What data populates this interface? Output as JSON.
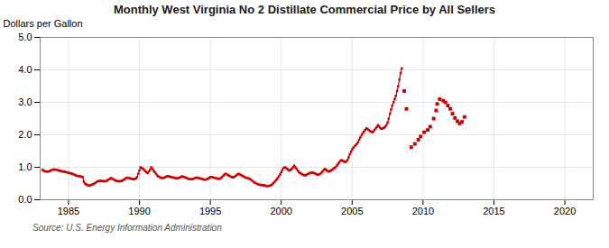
{
  "chart_data": {
    "type": "line",
    "title": "Monthly West Virginia No 2 Distillate Commercial Price by All Sellers",
    "ylabel": "Dollars per Gallon",
    "caption": "Source: U.S. Energy Information Administration",
    "xlim": [
      1983.0,
      2022.0
    ],
    "xticks": [
      1985,
      1990,
      1995,
      2000,
      2005,
      2010,
      2015,
      2020
    ],
    "ylim": [
      0.0,
      5.0
    ],
    "yticks": [
      {
        "value": 0.0,
        "label": "0.0"
      },
      {
        "value": 1.0,
        "label": "1.0"
      },
      {
        "value": 2.0,
        "label": "2.0"
      },
      {
        "value": 3.0,
        "label": "3.0"
      },
      {
        "value": 4.0,
        "label": "4.0"
      },
      {
        "value": 5.0,
        "label": "5.0"
      }
    ],
    "grid": true,
    "series": [
      {
        "type": "line",
        "marker": "square",
        "color": "#cc0000",
        "x": [
          1983.17,
          1983.25,
          1983.33,
          1983.42,
          1983.5,
          1983.58,
          1983.67,
          1983.75,
          1983.83,
          1983.92,
          1984.0,
          1984.08,
          1984.17,
          1984.25,
          1984.33,
          1984.42,
          1984.5,
          1984.58,
          1984.67,
          1984.75,
          1984.83,
          1984.92,
          1985.0,
          1985.08,
          1985.17,
          1985.25,
          1985.33,
          1985.42,
          1985.5,
          1985.58,
          1985.67,
          1985.75,
          1985.83,
          1985.92,
          1986.0,
          1986.08,
          1986.17,
          1986.25,
          1986.33,
          1986.42,
          1986.5,
          1986.58,
          1986.67,
          1986.75,
          1986.83,
          1986.92,
          1987.0,
          1987.08,
          1987.17,
          1987.25,
          1987.33,
          1987.42,
          1987.5,
          1987.58,
          1987.67,
          1987.75,
          1987.83,
          1987.92,
          1988.0,
          1988.08,
          1988.17,
          1988.25,
          1988.33,
          1988.42,
          1988.5,
          1988.58,
          1988.67,
          1988.75,
          1988.83,
          1988.92,
          1989.0,
          1989.08,
          1989.17,
          1989.25,
          1989.33,
          1989.42,
          1989.5,
          1989.58,
          1989.67,
          1989.75,
          1989.83,
          1989.92,
          1990.0,
          1990.08,
          1990.17,
          1990.25,
          1990.33,
          1990.42,
          1990.5,
          1990.58,
          1990.67,
          1990.75,
          1990.83,
          1990.92,
          1991.0,
          1991.08,
          1991.17,
          1991.25,
          1991.33,
          1991.42,
          1991.5,
          1991.58,
          1991.67,
          1991.75,
          1991.83,
          1991.92,
          1992.0,
          1992.08,
          1992.17,
          1992.25,
          1992.33,
          1992.42,
          1992.5,
          1992.58,
          1992.67,
          1992.75,
          1992.83,
          1992.92,
          1993.0,
          1993.08,
          1993.17,
          1993.25,
          1993.33,
          1993.42,
          1993.5,
          1993.58,
          1993.67,
          1993.75,
          1993.83,
          1993.92,
          1994.0,
          1994.08,
          1994.17,
          1994.25,
          1994.33,
          1994.42,
          1994.5,
          1994.58,
          1994.67,
          1994.75,
          1994.83,
          1994.92,
          1995.0,
          1995.08,
          1995.17,
          1995.25,
          1995.33,
          1995.42,
          1995.5,
          1995.58,
          1995.67,
          1995.75,
          1995.83,
          1995.92,
          1996.0,
          1996.08,
          1996.17,
          1996.25,
          1996.33,
          1996.42,
          1996.5,
          1996.58,
          1996.67,
          1996.75,
          1996.83,
          1996.92,
          1997.0,
          1997.08,
          1997.17,
          1997.25,
          1997.33,
          1997.42,
          1997.5,
          1997.58,
          1997.67,
          1997.75,
          1997.83,
          1997.92,
          1998.0,
          1998.08,
          1998.17,
          1998.25,
          1998.33,
          1998.42,
          1998.5,
          1998.58,
          1998.67,
          1998.75,
          1998.83,
          1998.92,
          1999.0,
          1999.08,
          1999.17,
          1999.25,
          1999.33,
          1999.42,
          1999.5,
          1999.58,
          1999.67,
          1999.75,
          1999.83,
          1999.92,
          2000.0,
          2000.08,
          2000.17,
          2000.25,
          2000.33,
          2000.42,
          2000.5,
          2000.58,
          2000.67,
          2000.75,
          2000.83,
          2000.92,
          2001.0,
          2001.08,
          2001.17,
          2001.25,
          2001.33,
          2001.42,
          2001.5,
          2001.58,
          2001.67,
          2001.75,
          2001.83,
          2001.92,
          2002.0,
          2002.08,
          2002.17,
          2002.25,
          2002.33,
          2002.42,
          2002.5,
          2002.58,
          2002.67,
          2002.75,
          2002.83,
          2002.92,
          2003.0,
          2003.08,
          2003.17,
          2003.25,
          2003.33,
          2003.42,
          2003.5,
          2003.58,
          2003.67,
          2003.75,
          2003.83,
          2003.92,
          2004.0,
          2004.08,
          2004.17,
          2004.25,
          2004.33,
          2004.42,
          2004.5,
          2004.58,
          2004.67,
          2004.75,
          2004.83,
          2004.92,
          2005.0,
          2005.08,
          2005.17,
          2005.25,
          2005.33,
          2005.42,
          2005.5,
          2005.58,
          2005.67,
          2005.75,
          2005.83,
          2005.92,
          2006.0,
          2006.08,
          2006.17,
          2006.25,
          2006.33,
          2006.42,
          2006.5,
          2006.58,
          2006.67,
          2006.75,
          2006.83,
          2006.92,
          2007.0,
          2007.08,
          2007.17,
          2007.25,
          2007.33,
          2007.42,
          2007.5,
          2007.58,
          2007.67,
          2007.75,
          2007.83,
          2007.92,
          2008.0,
          2008.08,
          2008.17,
          2008.25,
          2008.33,
          2008.42,
          2008.5
        ],
        "values": [
          0.92,
          0.9,
          0.88,
          0.87,
          0.87,
          0.87,
          0.88,
          0.9,
          0.92,
          0.93,
          0.93,
          0.93,
          0.92,
          0.91,
          0.9,
          0.89,
          0.88,
          0.87,
          0.87,
          0.86,
          0.85,
          0.84,
          0.83,
          0.82,
          0.81,
          0.8,
          0.79,
          0.77,
          0.75,
          0.74,
          0.73,
          0.73,
          0.72,
          0.71,
          0.7,
          0.55,
          0.5,
          0.47,
          0.45,
          0.44,
          0.44,
          0.45,
          0.47,
          0.48,
          0.5,
          0.53,
          0.55,
          0.57,
          0.58,
          0.58,
          0.58,
          0.57,
          0.57,
          0.57,
          0.58,
          0.6,
          0.62,
          0.65,
          0.67,
          0.65,
          0.63,
          0.61,
          0.59,
          0.58,
          0.57,
          0.57,
          0.57,
          0.58,
          0.6,
          0.62,
          0.65,
          0.67,
          0.68,
          0.67,
          0.66,
          0.65,
          0.64,
          0.63,
          0.64,
          0.65,
          0.7,
          0.8,
          0.9,
          1.0,
          0.98,
          0.95,
          0.92,
          0.88,
          0.85,
          0.82,
          0.87,
          0.92,
          1.0,
          0.95,
          0.9,
          0.85,
          0.8,
          0.75,
          0.72,
          0.7,
          0.68,
          0.67,
          0.67,
          0.68,
          0.7,
          0.72,
          0.73,
          0.72,
          0.71,
          0.7,
          0.69,
          0.68,
          0.67,
          0.66,
          0.66,
          0.67,
          0.68,
          0.7,
          0.72,
          0.71,
          0.7,
          0.68,
          0.67,
          0.65,
          0.64,
          0.63,
          0.63,
          0.64,
          0.65,
          0.67,
          0.68,
          0.68,
          0.67,
          0.66,
          0.65,
          0.64,
          0.63,
          0.62,
          0.62,
          0.63,
          0.65,
          0.67,
          0.7,
          0.7,
          0.69,
          0.68,
          0.67,
          0.66,
          0.65,
          0.64,
          0.65,
          0.67,
          0.7,
          0.74,
          0.78,
          0.8,
          0.78,
          0.76,
          0.74,
          0.72,
          0.7,
          0.69,
          0.7,
          0.72,
          0.75,
          0.78,
          0.8,
          0.78,
          0.76,
          0.74,
          0.72,
          0.7,
          0.68,
          0.67,
          0.66,
          0.65,
          0.63,
          0.6,
          0.57,
          0.54,
          0.52,
          0.5,
          0.48,
          0.47,
          0.46,
          0.45,
          0.45,
          0.45,
          0.44,
          0.43,
          0.42,
          0.42,
          0.43,
          0.44,
          0.46,
          0.5,
          0.54,
          0.58,
          0.62,
          0.67,
          0.72,
          0.78,
          0.85,
          0.92,
          0.98,
          1.0,
          0.98,
          0.95,
          0.92,
          0.9,
          0.92,
          0.95,
          1.0,
          1.05,
          1.0,
          0.95,
          0.9,
          0.85,
          0.82,
          0.8,
          0.78,
          0.76,
          0.75,
          0.76,
          0.78,
          0.8,
          0.82,
          0.83,
          0.84,
          0.83,
          0.82,
          0.8,
          0.78,
          0.77,
          0.78,
          0.8,
          0.83,
          0.87,
          0.92,
          0.95,
          0.92,
          0.89,
          0.87,
          0.88,
          0.9,
          0.92,
          0.95,
          0.98,
          1.0,
          1.05,
          1.1,
          1.15,
          1.2,
          1.22,
          1.2,
          1.18,
          1.16,
          1.18,
          1.22,
          1.3,
          1.4,
          1.48,
          1.55,
          1.6,
          1.65,
          1.68,
          1.72,
          1.78,
          1.85,
          1.92,
          2.0,
          2.05,
          2.1,
          2.15,
          2.2,
          2.18,
          2.15,
          2.12,
          2.1,
          2.08,
          2.1,
          2.15,
          2.2,
          2.25,
          2.3,
          2.25,
          2.2,
          2.18,
          2.2,
          2.22,
          2.25,
          2.3,
          2.38,
          2.5,
          2.65,
          2.78,
          2.9,
          3.0,
          3.1,
          3.2,
          3.35,
          3.5,
          3.7,
          3.9,
          4.05
        ]
      },
      {
        "type": "scatter",
        "marker": "square",
        "color": "#cc0000",
        "x": [
          2008.67,
          2008.83,
          2009.17,
          2009.42,
          2009.67,
          2009.83,
          2010.08,
          2010.33,
          2010.5,
          2010.75,
          2010.92,
          2011.0,
          2011.17,
          2011.42,
          2011.58,
          2011.75,
          2011.92,
          2012.08,
          2012.25,
          2012.42,
          2012.58,
          2012.75,
          2012.92
        ],
        "values": [
          3.35,
          2.8,
          1.62,
          1.72,
          1.85,
          1.95,
          2.08,
          2.15,
          2.25,
          2.5,
          2.75,
          2.95,
          3.1,
          3.05,
          3.0,
          2.9,
          2.8,
          2.65,
          2.52,
          2.42,
          2.35,
          2.4,
          2.55
        ]
      }
    ]
  }
}
